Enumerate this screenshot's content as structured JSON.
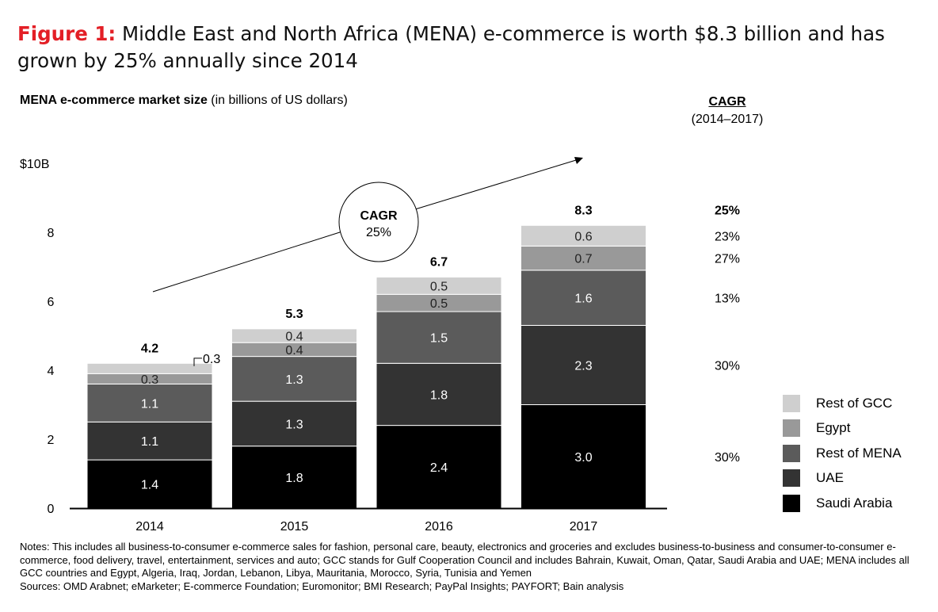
{
  "title": {
    "figure_label": "Figure 1:",
    "text": "Middle East and North Africa (MENA) e-commerce is worth $8.3 billion and has grown by 25% annually since 2014"
  },
  "subtitle": {
    "bold": "MENA e-commerce market size",
    "rest": "(in billions of US dollars)"
  },
  "cagr_header": {
    "title": "CAGR",
    "period": "(2014–2017)"
  },
  "cagr_bubble": {
    "label": "CAGR",
    "value": "25%"
  },
  "notes": {
    "notes_text": "Notes: This includes all business-to-consumer e-commerce sales for fashion, personal care, beauty, electronics and groceries and excludes business-to-business and consumer-to-consumer e-commerce, food delivery, travel, entertainment, services and auto; GCC stands for Gulf Cooperation Council and includes Bahrain, Kuwait, Oman, Qatar, Saudi Arabia and UAE; MENA includes all GCC countries and Egypt, Algeria, Iraq, Jordan, Lebanon, Libya, Mauritania, Morocco, Syria, Tunisia and Yemen",
    "sources_text": "Sources: OMD Arabnet; eMarketer; E-commerce Foundation; Euromonitor; BMI Research; PayPal Insights; PAYFORT; Bain analysis"
  },
  "chart_data": {
    "type": "bar",
    "stacked": true,
    "categories": [
      "2014",
      "2015",
      "2016",
      "2017"
    ],
    "series": [
      {
        "name": "Saudi Arabia",
        "values": [
          1.4,
          1.8,
          2.4,
          3.0
        ],
        "labels": [
          "1.4",
          "1.8",
          "2.4",
          "3.0"
        ],
        "color": "#000000",
        "text_color": "#ffffff",
        "cagr": "30%"
      },
      {
        "name": "UAE",
        "values": [
          1.1,
          1.3,
          1.8,
          2.3
        ],
        "labels": [
          "1.1",
          "1.3",
          "1.8",
          "2.3"
        ],
        "color": "#333333",
        "text_color": "#ffffff",
        "cagr": "30%"
      },
      {
        "name": "Rest of MENA",
        "values": [
          1.1,
          1.3,
          1.5,
          1.6
        ],
        "labels": [
          "1.1",
          "1.3",
          "1.5",
          "1.6"
        ],
        "color": "#5b5b5b",
        "text_color": "#ffffff",
        "cagr": "13%"
      },
      {
        "name": "Egypt",
        "values": [
          0.3,
          0.4,
          0.5,
          0.7
        ],
        "labels": [
          "0.3",
          "0.4",
          "0.5",
          "0.7"
        ],
        "color": "#999999",
        "text_color": "#222222",
        "cagr": "27%"
      },
      {
        "name": "Rest of GCC",
        "values": [
          0.3,
          0.4,
          0.5,
          0.6
        ],
        "labels": [
          "0.3",
          "0.4",
          "0.5",
          "0.6"
        ],
        "color": "#cfcfcf",
        "text_color": "#222222",
        "cagr": "23%"
      }
    ],
    "totals": [
      "4.2",
      "5.3",
      "6.7",
      "8.3"
    ],
    "total_cagr": "25%",
    "ylim": [
      0,
      10
    ],
    "yticks": [
      0,
      2,
      4,
      6,
      8,
      10
    ],
    "ytick_labels": [
      "0",
      "2",
      "4",
      "6",
      "8",
      "$10B"
    ],
    "xlabel": "",
    "ylabel": "",
    "legend_order": [
      "Rest of GCC",
      "Egypt",
      "Rest of MENA",
      "UAE",
      "Saudi Arabia"
    ],
    "legend_position": "right"
  }
}
